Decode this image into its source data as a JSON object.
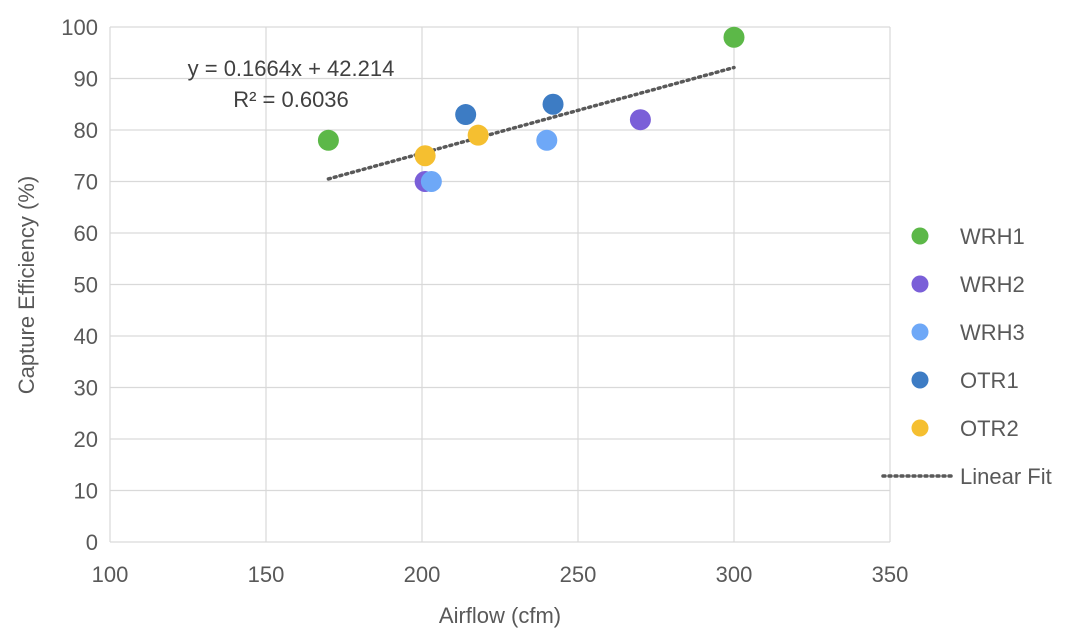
{
  "chart_data": {
    "type": "scatter",
    "xlabel": "Airflow (cfm)",
    "ylabel": "Capture Efficiency (%)",
    "xlim": [
      100,
      350
    ],
    "ylim": [
      0,
      100
    ],
    "x_ticks": [
      100,
      150,
      200,
      250,
      300,
      350
    ],
    "y_ticks": [
      0,
      10,
      20,
      30,
      40,
      50,
      60,
      70,
      80,
      90,
      100
    ],
    "grid": true,
    "legend_position": "right",
    "series": [
      {
        "name": "WRH1",
        "color": "#5cb848",
        "points": [
          [
            170,
            78
          ],
          [
            300,
            98
          ]
        ]
      },
      {
        "name": "WRH2",
        "color": "#7a5fd8",
        "points": [
          [
            201,
            70
          ],
          [
            270,
            82
          ]
        ]
      },
      {
        "name": "WRH3",
        "color": "#6ea8f7",
        "points": [
          [
            203,
            70
          ],
          [
            240,
            78
          ]
        ]
      },
      {
        "name": "OTR1",
        "color": "#3d7cc4",
        "points": [
          [
            214,
            83
          ],
          [
            242,
            85
          ]
        ]
      },
      {
        "name": "OTR2",
        "color": "#f5bf30",
        "points": [
          [
            201,
            75
          ],
          [
            218,
            79
          ]
        ]
      }
    ],
    "trendline": {
      "name": "Linear Fit",
      "slope": 0.1664,
      "intercept": 42.214,
      "x_range": [
        170,
        300
      ],
      "color": "#595959",
      "equation_text": "y = 0.1664x + 42.214",
      "r2_text": "R² = 0.6036"
    }
  }
}
